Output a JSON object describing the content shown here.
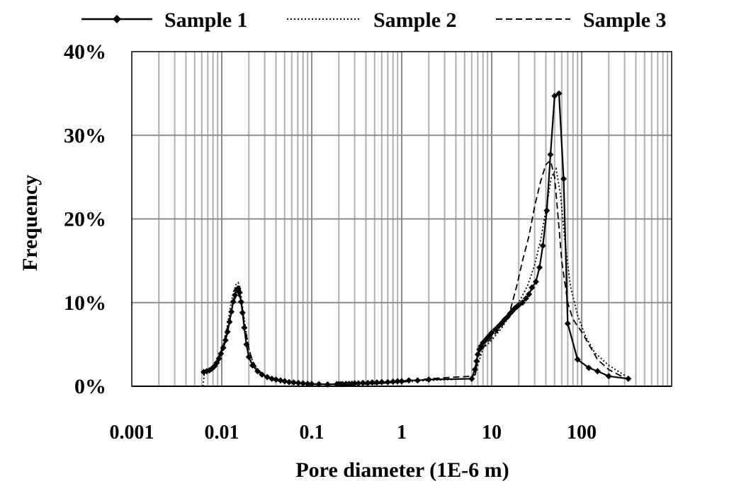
{
  "chart_data": {
    "type": "line",
    "title": "",
    "xlabel": "Pore diameter (1E-6 m)",
    "ylabel": "Frequency",
    "xscale": "log",
    "xlim": [
      0.001,
      1000
    ],
    "ylim": [
      0,
      0.4
    ],
    "x_ticks": [
      0.001,
      0.01,
      0.1,
      1,
      10,
      100
    ],
    "x_tick_labels": [
      "0.001",
      "0.01",
      "0.1",
      "1",
      "10",
      "100"
    ],
    "y_ticks": [
      0,
      0.1,
      0.2,
      0.3,
      0.4
    ],
    "y_tick_labels": [
      "0%",
      "10%",
      "20%",
      "30%",
      "40%"
    ],
    "grid": true,
    "legend_position": "top",
    "series": [
      {
        "name": "Sample 1",
        "style": "solid-diamond",
        "color": "#000000",
        "x": [
          0.0063,
          0.0068,
          0.0073,
          0.0078,
          0.0083,
          0.0088,
          0.0093,
          0.0098,
          0.0104,
          0.011,
          0.0116,
          0.0122,
          0.0128,
          0.0134,
          0.014,
          0.0146,
          0.0152,
          0.0158,
          0.0164,
          0.017,
          0.0178,
          0.0188,
          0.02,
          0.022,
          0.025,
          0.028,
          0.032,
          0.036,
          0.04,
          0.045,
          0.05,
          0.056,
          0.063,
          0.071,
          0.08,
          0.09,
          0.1,
          0.12,
          0.15,
          0.19,
          0.2,
          0.21,
          0.22,
          0.24,
          0.26,
          0.28,
          0.3,
          0.33,
          0.37,
          0.42,
          0.47,
          0.53,
          0.6,
          0.7,
          0.8,
          0.9,
          1.0,
          1.2,
          1.5,
          2.0,
          6.0,
          6.5,
          6.8,
          7.0,
          7.3,
          7.6,
          8.0,
          8.5,
          9.0,
          9.5,
          10,
          11,
          12,
          13,
          14,
          15,
          16,
          17,
          18,
          19,
          20,
          22,
          24,
          26,
          28,
          31,
          34,
          37,
          41,
          45,
          50,
          56,
          63,
          70,
          90,
          120,
          150,
          200,
          330
        ],
        "y": [
          0.017,
          0.018,
          0.019,
          0.021,
          0.024,
          0.028,
          0.033,
          0.039,
          0.046,
          0.055,
          0.065,
          0.077,
          0.089,
          0.101,
          0.109,
          0.115,
          0.117,
          0.112,
          0.101,
          0.088,
          0.07,
          0.05,
          0.035,
          0.025,
          0.018,
          0.014,
          0.011,
          0.009,
          0.008,
          0.007,
          0.006,
          0.005,
          0.0045,
          0.004,
          0.0035,
          0.003,
          0.0028,
          0.0025,
          0.0022,
          0.0025,
          0.0025,
          0.0025,
          0.0025,
          0.003,
          0.003,
          0.003,
          0.0035,
          0.0035,
          0.004,
          0.004,
          0.0045,
          0.0045,
          0.005,
          0.005,
          0.0055,
          0.006,
          0.006,
          0.007,
          0.007,
          0.008,
          0.009,
          0.02,
          0.03,
          0.038,
          0.044,
          0.048,
          0.052,
          0.055,
          0.058,
          0.061,
          0.064,
          0.068,
          0.072,
          0.076,
          0.08,
          0.083,
          0.087,
          0.09,
          0.093,
          0.095,
          0.097,
          0.1,
          0.105,
          0.11,
          0.118,
          0.125,
          0.142,
          0.168,
          0.21,
          0.277,
          0.347,
          0.35,
          0.248,
          0.075,
          0.032,
          0.022,
          0.018,
          0.012,
          0.009
        ]
      },
      {
        "name": "Sample 2",
        "style": "dotted",
        "color": "#000000",
        "x": [
          0.0062,
          0.0064,
          0.0068,
          0.0075,
          0.0085,
          0.0095,
          0.0105,
          0.0115,
          0.0125,
          0.0135,
          0.0145,
          0.0152,
          0.016,
          0.017,
          0.0185,
          0.02,
          0.022,
          0.025,
          0.03,
          0.04,
          0.06,
          0.1,
          0.2,
          0.5,
          1,
          2,
          6,
          7,
          8,
          10,
          13,
          16,
          20,
          25,
          30,
          35,
          40,
          46,
          52,
          58,
          65,
          75,
          90,
          110,
          140,
          200,
          300
        ],
        "y": [
          0.0,
          0.016,
          0.017,
          0.02,
          0.026,
          0.037,
          0.052,
          0.072,
          0.095,
          0.113,
          0.122,
          0.124,
          0.118,
          0.095,
          0.068,
          0.045,
          0.03,
          0.02,
          0.012,
          0.007,
          0.004,
          0.003,
          0.002,
          0.003,
          0.005,
          0.007,
          0.009,
          0.025,
          0.045,
          0.055,
          0.07,
          0.085,
          0.1,
          0.12,
          0.145,
          0.175,
          0.21,
          0.25,
          0.26,
          0.23,
          0.175,
          0.12,
          0.085,
          0.06,
          0.04,
          0.025,
          0.013
        ]
      },
      {
        "name": "Sample 3",
        "style": "dashed",
        "color": "#000000",
        "x": [
          0.0063,
          0.007,
          0.008,
          0.009,
          0.01,
          0.011,
          0.012,
          0.013,
          0.014,
          0.015,
          0.016,
          0.017,
          0.018,
          0.02,
          0.022,
          0.025,
          0.03,
          0.04,
          0.06,
          0.1,
          0.2,
          0.5,
          1,
          2,
          4,
          6,
          6.6,
          7,
          8,
          10,
          13,
          16,
          19,
          22,
          26,
          30,
          35,
          40,
          45,
          50,
          55,
          60,
          70,
          80,
          100,
          120,
          150,
          200,
          300
        ],
        "y": [
          0.016,
          0.018,
          0.023,
          0.032,
          0.045,
          0.06,
          0.078,
          0.094,
          0.105,
          0.11,
          0.106,
          0.092,
          0.072,
          0.045,
          0.03,
          0.02,
          0.012,
          0.007,
          0.004,
          0.002,
          0.002,
          0.003,
          0.005,
          0.009,
          0.011,
          0.012,
          0.014,
          0.038,
          0.046,
          0.058,
          0.072,
          0.09,
          0.12,
          0.15,
          0.18,
          0.215,
          0.245,
          0.265,
          0.27,
          0.25,
          0.2,
          0.15,
          0.1,
          0.08,
          0.065,
          0.05,
          0.032,
          0.02,
          0.01
        ]
      }
    ]
  }
}
